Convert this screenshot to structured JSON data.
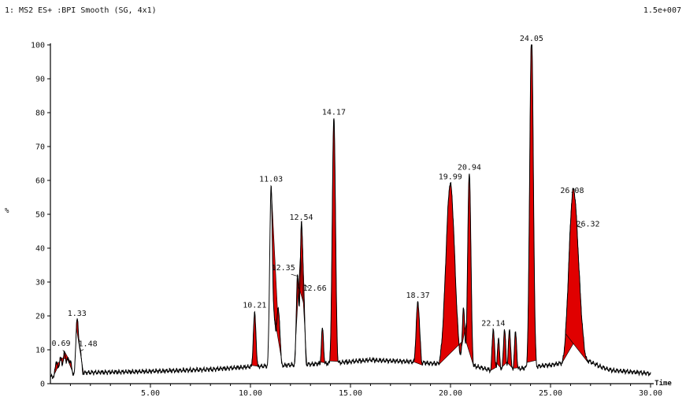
{
  "header": {
    "title": "1: MS2 ES+ :BPI Smooth (SG, 4x1)",
    "scale": "1.5e+007",
    "ylabel": "%"
  },
  "chart_data": {
    "type": "line",
    "title": "1: MS2 ES+ :BPI Smooth (SG, 4x1)",
    "xlabel": "Time",
    "ylabel": "%",
    "xlim": [
      0,
      30
    ],
    "ylim": [
      0,
      100
    ],
    "x_ticks": [
      5,
      10,
      15,
      20,
      25,
      30
    ],
    "x_tick_labels": [
      "5.00",
      "10.00",
      "15.00",
      "20.00",
      "25.00",
      "30.00"
    ],
    "y_ticks": [
      0,
      10,
      20,
      30,
      40,
      50,
      60,
      70,
      80,
      90,
      100
    ],
    "y_tick_labels": [
      "0",
      "10",
      "20",
      "30",
      "40",
      "50",
      "60",
      "70",
      "80",
      "90",
      "100"
    ],
    "intensity_max": "1.5e+007",
    "baseline": [
      [
        0,
        2
      ],
      [
        0.4,
        2.5
      ],
      [
        1,
        3
      ],
      [
        2,
        3.3
      ],
      [
        4,
        3.5
      ],
      [
        6,
        3.8
      ],
      [
        8,
        4.2
      ],
      [
        10,
        5
      ],
      [
        12,
        5.5
      ],
      [
        14,
        6
      ],
      [
        16,
        7
      ],
      [
        18,
        6.5
      ],
      [
        19,
        6
      ],
      [
        21,
        5.5
      ],
      [
        22,
        4
      ],
      [
        23,
        4
      ],
      [
        24,
        5
      ],
      [
        25,
        5.5
      ],
      [
        26,
        6.5
      ],
      [
        26.8,
        7
      ],
      [
        27.5,
        5
      ],
      [
        28,
        4
      ],
      [
        29,
        3.5
      ],
      [
        30,
        3
      ]
    ],
    "peaks": [
      {
        "rt": 0.3,
        "height": 5,
        "width": 0.06,
        "filled": true,
        "labeled": false
      },
      {
        "rt": 0.5,
        "height": 6,
        "width": 0.06,
        "filled": true,
        "labeled": false
      },
      {
        "rt": 0.69,
        "height": 7,
        "width": 0.06,
        "filled": true,
        "label": "0.69",
        "labeled": true
      },
      {
        "rt": 0.85,
        "height": 5,
        "width": 0.06,
        "filled": true,
        "labeled": false
      },
      {
        "rt": 1.0,
        "height": 4.5,
        "width": 0.06,
        "filled": true,
        "labeled": false
      },
      {
        "rt": 1.33,
        "height": 16.5,
        "width": 0.06,
        "filled": false,
        "label": "1.33",
        "labeled": true
      },
      {
        "rt": 1.48,
        "height": 8,
        "width": 0.07,
        "filled": true,
        "label": "1.48",
        "labeled": true
      },
      {
        "rt": 10.21,
        "height": 17,
        "width": 0.07,
        "filled": true,
        "label": "10.21",
        "labeled": true
      },
      {
        "rt": 11.03,
        "height": 54,
        "width": 0.07,
        "filled": false,
        "label": "11.03",
        "labeled": true
      },
      {
        "rt": 11.2,
        "height": 12,
        "width": 0.06,
        "filled": true,
        "labeled": false
      },
      {
        "rt": 11.35,
        "height": 14,
        "width": 0.06,
        "filled": true,
        "labeled": false
      },
      {
        "rt": 11.45,
        "height": 11,
        "width": 0.06,
        "filled": true,
        "labeled": false
      },
      {
        "rt": 12.35,
        "height": 28,
        "width": 0.06,
        "filled": true,
        "label": "12.35",
        "labeled": true
      },
      {
        "rt": 12.54,
        "height": 40,
        "width": 0.06,
        "filled": true,
        "label": "12.54",
        "labeled": true
      },
      {
        "rt": 12.66,
        "height": 21,
        "width": 0.06,
        "filled": true,
        "label": "12.66",
        "labeled": true
      },
      {
        "rt": 13.6,
        "height": 12,
        "width": 0.06,
        "filled": true,
        "labeled": false
      },
      {
        "rt": 14.17,
        "height": 74.5,
        "width": 0.08,
        "filled": true,
        "label": "14.17",
        "labeled": true
      },
      {
        "rt": 18.37,
        "height": 19.5,
        "width": 0.09,
        "filled": true,
        "label": "18.37",
        "labeled": true
      },
      {
        "rt": 19.99,
        "height": 55,
        "width": 0.22,
        "filled": true,
        "label": "19.99",
        "labeled": true
      },
      {
        "rt": 20.65,
        "height": 18,
        "width": 0.06,
        "filled": true,
        "labeled": false
      },
      {
        "rt": 20.94,
        "height": 58.5,
        "width": 0.08,
        "filled": true,
        "label": "20.94",
        "labeled": true
      },
      {
        "rt": 22.14,
        "height": 13.5,
        "width": 0.06,
        "filled": true,
        "label": "22.14",
        "labeled": true
      },
      {
        "rt": 22.4,
        "height": 10,
        "width": 0.06,
        "filled": true,
        "labeled": false
      },
      {
        "rt": 22.7,
        "height": 13,
        "width": 0.06,
        "filled": true,
        "labeled": false
      },
      {
        "rt": 22.95,
        "height": 13,
        "width": 0.06,
        "filled": true,
        "labeled": false
      },
      {
        "rt": 23.25,
        "height": 12,
        "width": 0.06,
        "filled": true,
        "labeled": false
      },
      {
        "rt": 24.05,
        "height": 100,
        "width": 0.09,
        "filled": true,
        "label": "24.05",
        "labeled": true
      },
      {
        "rt": 26.08,
        "height": 38,
        "width": 0.2,
        "filled": true,
        "label": "26.08",
        "labeled": true
      },
      {
        "rt": 26.32,
        "height": 23,
        "width": 0.22,
        "filled": true,
        "label": "26.32",
        "labeled": true
      }
    ],
    "colors": {
      "trace": "#000000",
      "fill": "#e00000",
      "axis": "#000000"
    }
  }
}
